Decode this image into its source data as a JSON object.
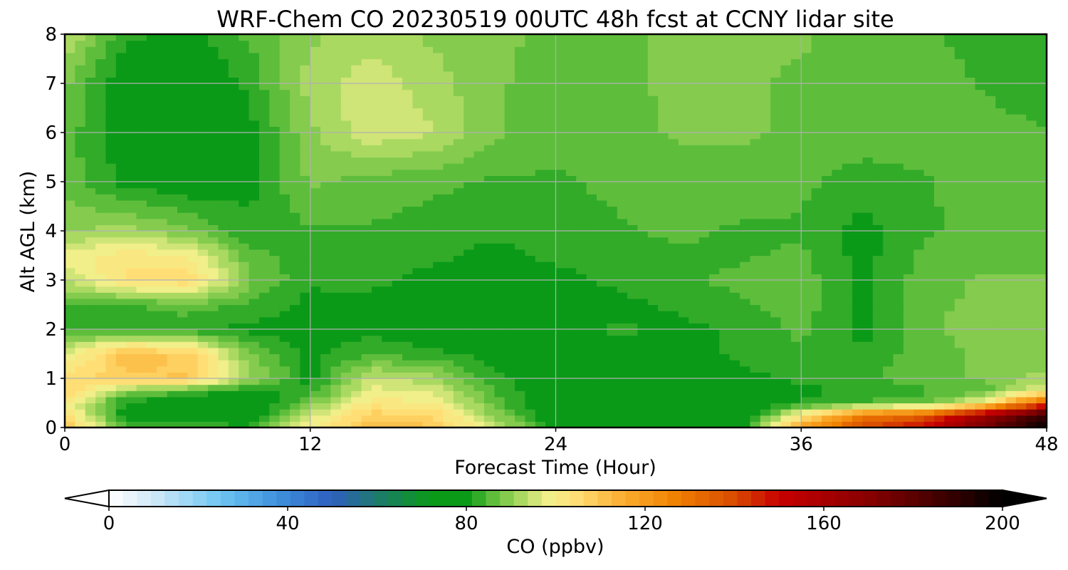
{
  "chart_data": {
    "type": "heatmap",
    "title": "WRF-Chem CO  20230519 00UTC 48h fcst at CCNY lidar site",
    "xlabel": "Forecast Time (Hour)",
    "ylabel": "Alt AGL (km)",
    "xlim": [
      0,
      48
    ],
    "ylim": [
      0,
      8
    ],
    "x_ticks": [
      "0",
      "12",
      "24",
      "36",
      "48"
    ],
    "y_ticks": [
      "0",
      "1",
      "2",
      "3",
      "4",
      "5",
      "6",
      "7",
      "8"
    ],
    "grid": true,
    "x": [
      0,
      3,
      6,
      9,
      12,
      15,
      18,
      21,
      24,
      27,
      30,
      33,
      36,
      39,
      42,
      45,
      48
    ],
    "y": [
      0,
      0.25,
      0.5,
      0.75,
      1,
      1.5,
      2,
      2.5,
      3,
      3.5,
      4,
      5,
      6,
      7,
      8
    ],
    "z": [
      [
        110,
        85,
        85,
        82,
        100,
        112,
        110,
        95,
        80,
        79,
        77,
        78,
        120,
        140,
        150,
        175,
        200
      ],
      [
        105,
        78,
        76,
        75,
        95,
        108,
        106,
        90,
        77,
        76,
        75,
        76,
        100,
        128,
        135,
        165,
        190
      ],
      [
        100,
        80,
        78,
        76,
        88,
        102,
        100,
        86,
        76,
        75,
        74,
        76,
        82,
        85,
        86,
        100,
        140
      ],
      [
        108,
        90,
        84,
        80,
        82,
        98,
        96,
        84,
        77,
        76,
        76,
        78,
        80,
        82,
        84,
        86,
        98
      ],
      [
        105,
        108,
        110,
        92,
        80,
        95,
        92,
        82,
        78,
        78,
        78,
        80,
        82,
        84,
        86,
        88,
        92
      ],
      [
        96,
        112,
        108,
        88,
        80,
        84,
        82,
        80,
        80,
        80,
        79,
        82,
        84,
        82,
        86,
        88,
        88
      ],
      [
        84,
        82,
        82,
        80,
        79,
        80,
        78,
        79,
        79,
        82,
        80,
        82,
        85,
        80,
        86,
        90,
        89
      ],
      [
        84,
        84,
        86,
        84,
        80,
        80,
        78,
        80,
        80,
        80,
        82,
        84,
        86,
        80,
        87,
        88,
        88
      ],
      [
        94,
        104,
        106,
        88,
        82,
        82,
        80,
        80,
        80,
        82,
        84,
        85,
        86,
        80,
        86,
        88,
        88
      ],
      [
        98,
        102,
        100,
        86,
        82,
        82,
        82,
        80,
        82,
        82,
        84,
        84,
        85,
        80,
        85,
        86,
        86
      ],
      [
        90,
        92,
        88,
        82,
        84,
        84,
        83,
        82,
        83,
        84,
        85,
        84,
        84,
        80,
        84,
        85,
        85
      ],
      [
        86,
        80,
        78,
        80,
        88,
        86,
        85,
        84,
        84,
        85,
        86,
        86,
        85,
        83,
        84,
        86,
        86
      ],
      [
        86,
        79,
        75,
        80,
        90,
        96,
        94,
        88,
        85,
        86,
        88,
        88,
        87,
        86,
        86,
        86,
        85
      ],
      [
        88,
        78,
        77,
        82,
        92,
        96,
        92,
        88,
        86,
        87,
        88,
        88,
        87,
        86,
        86,
        84,
        81
      ],
      [
        94,
        82,
        80,
        85,
        90,
        92,
        90,
        88,
        87,
        87,
        88,
        88,
        88,
        86,
        85,
        83,
        82
      ]
    ],
    "colorbar": {
      "label": "CO  (ppbv)",
      "min": 0,
      "max": 200,
      "ticks": [
        "0",
        "40",
        "80",
        "120",
        "160",
        "200"
      ],
      "extend": "both",
      "levels": 64,
      "stops": [
        [
          0,
          "#ffffff"
        ],
        [
          10,
          "#cfe9f7"
        ],
        [
          25,
          "#6ec5f2"
        ],
        [
          38,
          "#3d90dd"
        ],
        [
          50,
          "#2f5fbf"
        ],
        [
          60,
          "#1e7a6e"
        ],
        [
          72,
          "#0a9a18"
        ],
        [
          80,
          "#0a9a18"
        ],
        [
          86,
          "#5fbe3c"
        ],
        [
          92,
          "#a8d860"
        ],
        [
          98,
          "#f0f08a"
        ],
        [
          104,
          "#ffe27a"
        ],
        [
          115,
          "#fbae30"
        ],
        [
          127,
          "#f08000"
        ],
        [
          140,
          "#d84b00"
        ],
        [
          150,
          "#c80000"
        ],
        [
          172,
          "#800000"
        ],
        [
          200,
          "#000000"
        ]
      ]
    }
  }
}
